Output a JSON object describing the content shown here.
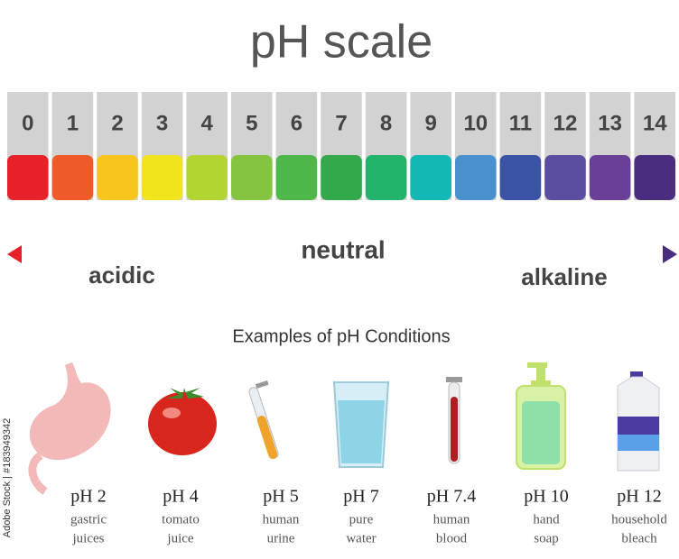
{
  "title": "pH scale",
  "scale": [
    {
      "label": "0",
      "color": "#e8202a"
    },
    {
      "label": "1",
      "color": "#ef5a28"
    },
    {
      "label": "2",
      "color": "#f7c51e"
    },
    {
      "label": "3",
      "color": "#f2e41c"
    },
    {
      "label": "4",
      "color": "#b3d534"
    },
    {
      "label": "5",
      "color": "#84c441"
    },
    {
      "label": "6",
      "color": "#4db749"
    },
    {
      "label": "7",
      "color": "#33a94b"
    },
    {
      "label": "8",
      "color": "#22b46b"
    },
    {
      "label": "9",
      "color": "#12b8b3"
    },
    {
      "label": "10",
      "color": "#4a90cf"
    },
    {
      "label": "11",
      "color": "#3a53a4"
    },
    {
      "label": "12",
      "color": "#5b4ea1"
    },
    {
      "label": "13",
      "color": "#6a3f98"
    },
    {
      "label": "14",
      "color": "#4b2d7f"
    }
  ],
  "arrow": {
    "neutral": "neutral",
    "acidic": "acidic",
    "alkaline": "alkaline"
  },
  "examples_title": "Examples of pH Conditions",
  "examples": [
    {
      "ph": "pH 2",
      "lines": [
        "gastric",
        "juices"
      ]
    },
    {
      "ph": "pH 4",
      "lines": [
        "tomato",
        "juice"
      ]
    },
    {
      "ph": "pH 5",
      "lines": [
        "human",
        "urine"
      ]
    },
    {
      "ph": "pH 7",
      "lines": [
        "pure",
        "water"
      ]
    },
    {
      "ph": "pH 7.4",
      "lines": [
        "human",
        "blood"
      ]
    },
    {
      "ph": "pH 10",
      "lines": [
        "hand",
        "soap"
      ]
    },
    {
      "ph": "pH 12",
      "lines": [
        "household",
        "bleach"
      ]
    }
  ],
  "watermark": "Adobe Stock | #183949342"
}
